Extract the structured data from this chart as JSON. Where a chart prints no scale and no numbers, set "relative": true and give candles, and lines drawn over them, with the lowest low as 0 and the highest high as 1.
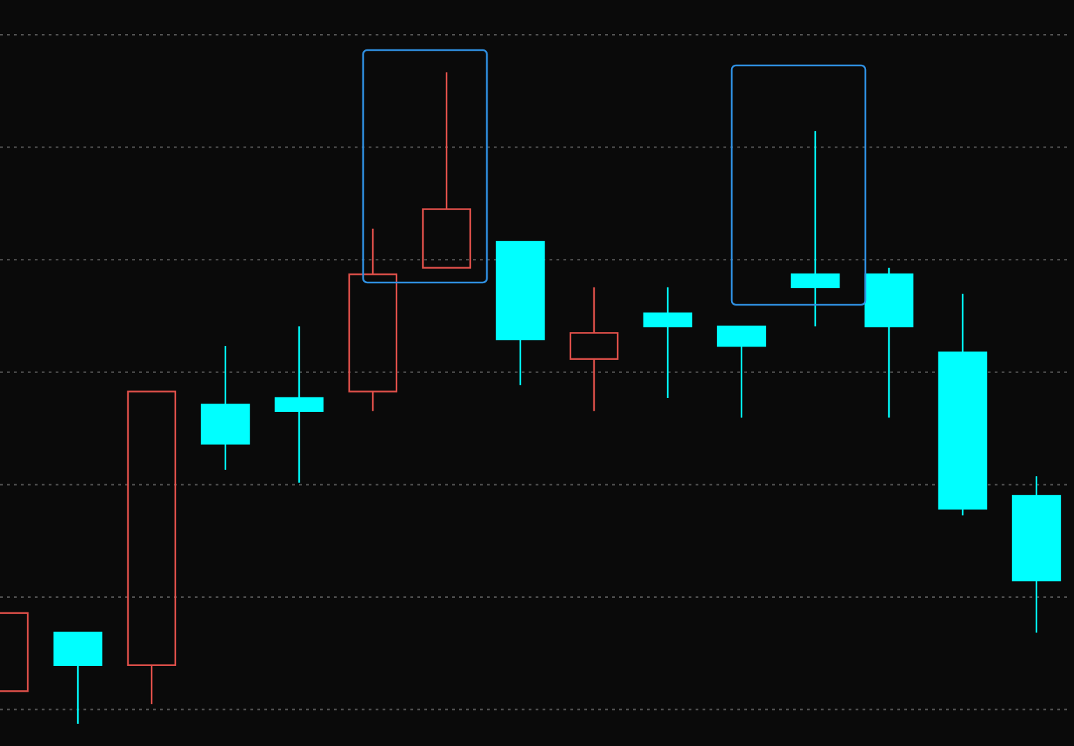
{
  "chart_data": {
    "type": "candlestick",
    "relative": true,
    "grid": true,
    "categories": [
      null,
      null,
      null,
      null,
      null,
      null,
      null,
      null,
      null,
      null,
      null,
      null,
      null,
      null,
      null
    ],
    "ohlc": [
      [
        0.05,
        0.17,
        0.05,
        0.17
      ],
      [
        0.14,
        0.14,
        0,
        0.09
      ],
      [
        0.09,
        0.51,
        0.03,
        0.51
      ],
      [
        0.49,
        0.58,
        0.39,
        0.43
      ],
      [
        0.5,
        0.61,
        0.37,
        0.48
      ],
      [
        0.51,
        0.76,
        0.48,
        0.69
      ],
      [
        0.7,
        1,
        0.7,
        0.79
      ],
      [
        0.74,
        0.74,
        0.52,
        0.59
      ],
      [
        0.56,
        0.67,
        0.48,
        0.6
      ],
      [
        0.63,
        0.67,
        0.5,
        0.61
      ],
      [
        0.61,
        0.61,
        0.47,
        0.58
      ],
      [
        0.69,
        0.91,
        0.61,
        0.67
      ],
      [
        0.69,
        0.7,
        0.47,
        0.61
      ],
      [
        0.57,
        0.66,
        0.32,
        0.33
      ],
      [
        0.35,
        0.38,
        0.14,
        0.22
      ]
    ],
    "colors": [
      "#e0504a",
      "#00ffff",
      "#e0504a",
      "#00ffff",
      "#00ffff",
      "#e0504a",
      "#e0504a",
      "#00ffff",
      "#e0504a",
      "#00ffff",
      "#00ffff",
      "#00ffff",
      "#00ffff",
      "#00ffff",
      "#00ffff"
    ]
  }
}
